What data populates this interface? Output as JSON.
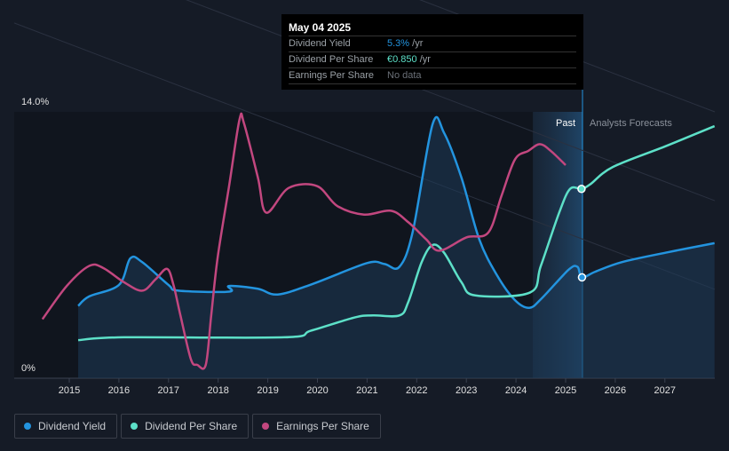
{
  "tooltip": {
    "date": "May 04 2025",
    "rows": [
      {
        "label": "Dividend Yield",
        "value": "5.3%",
        "unit": "/yr",
        "color": "#2394df"
      },
      {
        "label": "Dividend Per Share",
        "value": "€0.850",
        "unit": "/yr",
        "color": "#5de0c8"
      },
      {
        "label": "Earnings Per Share",
        "value": "No data",
        "unit": "",
        "color": "#6b7078"
      }
    ]
  },
  "chart_data": {
    "type": "line",
    "y_ticks": [
      "0%",
      "14.0%"
    ],
    "ylim": [
      0,
      14
    ],
    "xlim": [
      2014.4,
      2028
    ],
    "x_ticks": [
      "2015",
      "2016",
      "2017",
      "2018",
      "2019",
      "2020",
      "2021",
      "2022",
      "2023",
      "2024",
      "2025",
      "2026",
      "2027"
    ],
    "regions": {
      "past_label": "Past",
      "forecast_label": "Analysts Forecasts",
      "past_start": 2024.34,
      "past_end": 2025.34
    },
    "series": [
      {
        "name": "Dividend Yield",
        "color": "#2394df",
        "fill": true,
        "points": [
          [
            2015.18,
            3.8
          ],
          [
            2015.4,
            4.3
          ],
          [
            2016.0,
            4.9
          ],
          [
            2016.23,
            6.3
          ],
          [
            2016.47,
            6.1
          ],
          [
            2017.0,
            4.9
          ],
          [
            2017.2,
            4.6
          ],
          [
            2018.22,
            4.55
          ],
          [
            2018.22,
            4.85
          ],
          [
            2018.8,
            4.7
          ],
          [
            2019.2,
            4.4
          ],
          [
            2019.9,
            4.95
          ],
          [
            2021.0,
            6.05
          ],
          [
            2021.35,
            6.0
          ],
          [
            2021.65,
            5.85
          ],
          [
            2021.92,
            7.7
          ],
          [
            2022.32,
            13.35
          ],
          [
            2022.55,
            12.9
          ],
          [
            2022.9,
            10.55
          ],
          [
            2023.26,
            7.3
          ],
          [
            2023.62,
            5.4
          ],
          [
            2023.98,
            4.1
          ],
          [
            2024.27,
            3.7
          ],
          [
            2024.52,
            4.2
          ],
          [
            2025.06,
            5.7
          ],
          [
            2025.24,
            5.85
          ],
          [
            2025.33,
            5.3
          ],
          [
            2025.6,
            5.6
          ],
          [
            2026.13,
            6.1
          ],
          [
            2027.02,
            6.6
          ],
          [
            2028.0,
            7.1
          ]
        ]
      },
      {
        "name": "Dividend Per Share",
        "color": "#5de0c8",
        "fill": false,
        "points": [
          [
            2015.18,
            2.0
          ],
          [
            2016.1,
            2.15
          ],
          [
            2019.33,
            2.15
          ],
          [
            2019.87,
            2.5
          ],
          [
            2020.76,
            3.2
          ],
          [
            2021.12,
            3.3
          ],
          [
            2021.65,
            3.3
          ],
          [
            2021.83,
            4.0
          ],
          [
            2022.1,
            6.1
          ],
          [
            2022.32,
            7.0
          ],
          [
            2022.55,
            6.6
          ],
          [
            2022.9,
            5.05
          ],
          [
            2023.18,
            4.35
          ],
          [
            2024.28,
            4.5
          ],
          [
            2024.5,
            5.9
          ],
          [
            2024.87,
            8.7
          ],
          [
            2025.09,
            9.95
          ],
          [
            2025.32,
            9.95
          ],
          [
            2025.5,
            10.2
          ],
          [
            2025.95,
            11.1
          ],
          [
            2027.02,
            12.2
          ],
          [
            2028.0,
            13.25
          ]
        ]
      },
      {
        "name": "Earnings Per Share",
        "color": "#c2477f",
        "fill": false,
        "points": [
          [
            2014.46,
            3.1
          ],
          [
            2014.95,
            4.85
          ],
          [
            2015.4,
            5.9
          ],
          [
            2015.68,
            5.8
          ],
          [
            2016.1,
            5.05
          ],
          [
            2016.47,
            4.6
          ],
          [
            2016.74,
            5.2
          ],
          [
            2016.97,
            5.75
          ],
          [
            2017.1,
            4.9
          ],
          [
            2017.24,
            3.3
          ],
          [
            2017.45,
            1.0
          ],
          [
            2017.58,
            0.7
          ],
          [
            2017.75,
            0.7
          ],
          [
            2017.86,
            3.3
          ],
          [
            2017.99,
            6.35
          ],
          [
            2018.22,
            10.1
          ],
          [
            2018.43,
            13.6
          ],
          [
            2018.52,
            13.4
          ],
          [
            2018.8,
            10.55
          ],
          [
            2018.97,
            8.7
          ],
          [
            2019.42,
            10.0
          ],
          [
            2019.99,
            10.1
          ],
          [
            2020.4,
            9.05
          ],
          [
            2020.94,
            8.6
          ],
          [
            2021.48,
            8.8
          ],
          [
            2021.83,
            8.2
          ],
          [
            2022.19,
            7.3
          ],
          [
            2022.46,
            6.7
          ],
          [
            2023.0,
            7.4
          ],
          [
            2023.44,
            7.65
          ],
          [
            2023.71,
            9.6
          ],
          [
            2023.98,
            11.5
          ],
          [
            2024.25,
            11.95
          ],
          [
            2024.48,
            12.3
          ],
          [
            2024.7,
            11.95
          ],
          [
            2025.0,
            11.2
          ]
        ]
      }
    ],
    "markers": [
      {
        "series": "Dividend Per Share",
        "x": 2025.32,
        "y": 9.95
      },
      {
        "series": "Dividend Yield",
        "x": 2025.33,
        "y": 5.3
      }
    ]
  }
}
